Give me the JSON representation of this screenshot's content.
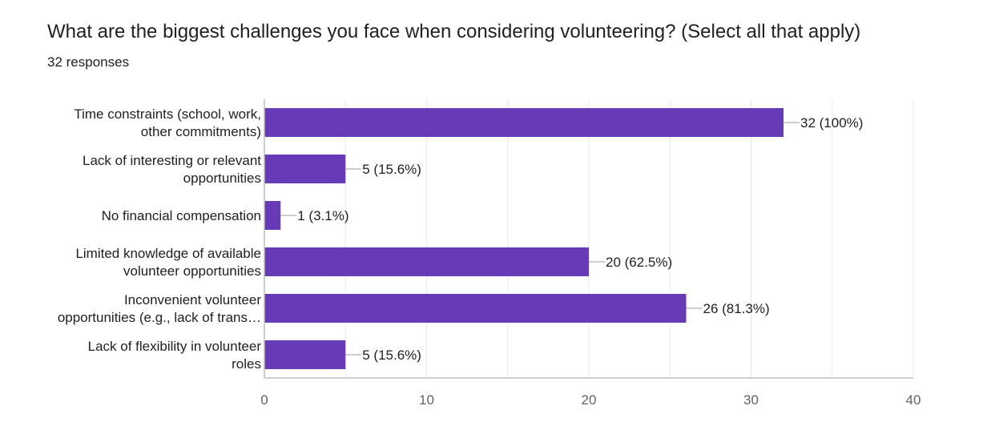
{
  "header": {
    "title": "What are the biggest challenges you face when considering volunteering? (Select all that apply)",
    "responses": "32 responses"
  },
  "colors": {
    "bar": "#673ab7",
    "grid": "#e8e8e8",
    "axis": "#bdbdbd",
    "leader": "#9e9e9e"
  },
  "chart_data": {
    "type": "bar",
    "orientation": "horizontal",
    "title": "What are the biggest challenges you face when considering volunteering? (Select all that apply)",
    "subtitle": "32 responses",
    "categories": [
      [
        "Time constraints (school, work,",
        "other commitments)"
      ],
      [
        "Lack of interesting or relevant",
        "opportunities"
      ],
      [
        "No financial compensation"
      ],
      [
        "Limited knowledge of available",
        "volunteer opportunities"
      ],
      [
        "Inconvenient volunteer",
        "opportunities (e.g., lack of trans…"
      ],
      [
        "Lack of flexibility in volunteer",
        "roles"
      ]
    ],
    "values": [
      32,
      5,
      1,
      20,
      26,
      5
    ],
    "data_labels": [
      "32 (100%)",
      "5 (15.6%)",
      "1 (3.1%)",
      "20 (62.5%)",
      "26 (81.3%)",
      "5 (15.6%)"
    ],
    "xlim": [
      0,
      40
    ],
    "xticks": [
      0,
      10,
      20,
      30,
      40
    ],
    "xlabel": "",
    "ylabel": "",
    "grid": true
  }
}
